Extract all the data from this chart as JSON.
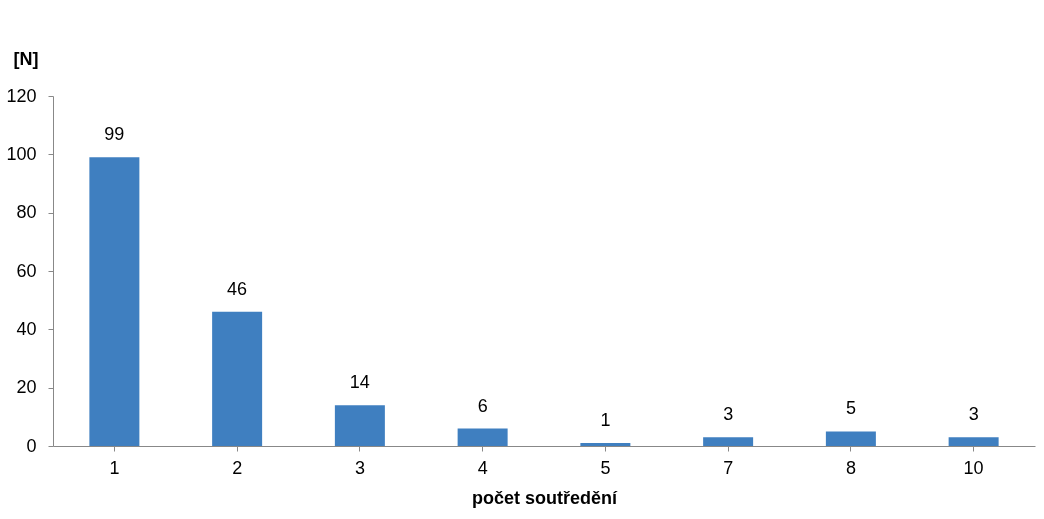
{
  "chart_data": {
    "type": "bar",
    "ylabel": "[N]",
    "xlabel": "počet soutředění",
    "categories": [
      "1",
      "2",
      "3",
      "4",
      "5",
      "7",
      "8",
      "10"
    ],
    "values": [
      99,
      46,
      14,
      6,
      1,
      3,
      5,
      3
    ],
    "color": "#3f7fc0",
    "ylim": [
      0,
      120
    ],
    "yticks": [
      0,
      20,
      40,
      60,
      80,
      100,
      120
    ],
    "data_labels": true,
    "grid": false
  }
}
